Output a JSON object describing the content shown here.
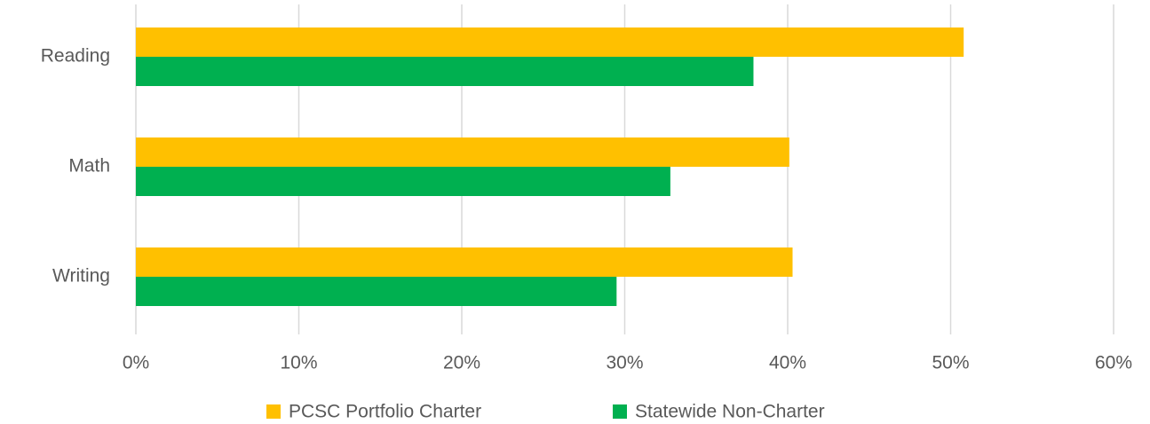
{
  "chart_data": {
    "type": "hbar",
    "categories": [
      "Reading",
      "Math",
      "Writing"
    ],
    "series": [
      {
        "name": "PCSC Portfolio Charter",
        "color": "#FFC000",
        "values": [
          50.8,
          40.1,
          40.3
        ]
      },
      {
        "name": "Statewide Non-Charter",
        "color": "#00B050",
        "values": [
          37.9,
          32.8,
          29.5
        ]
      }
    ],
    "xlim": [
      0,
      60
    ],
    "xticks": [
      {
        "value": 0,
        "label": "0%"
      },
      {
        "value": 10,
        "label": "10%"
      },
      {
        "value": 20,
        "label": "20%"
      },
      {
        "value": 30,
        "label": "30%"
      },
      {
        "value": 40,
        "label": "40%"
      },
      {
        "value": 50,
        "label": "50%"
      },
      {
        "value": 60,
        "label": "60%"
      }
    ],
    "grid": true,
    "legend": "bottom"
  }
}
